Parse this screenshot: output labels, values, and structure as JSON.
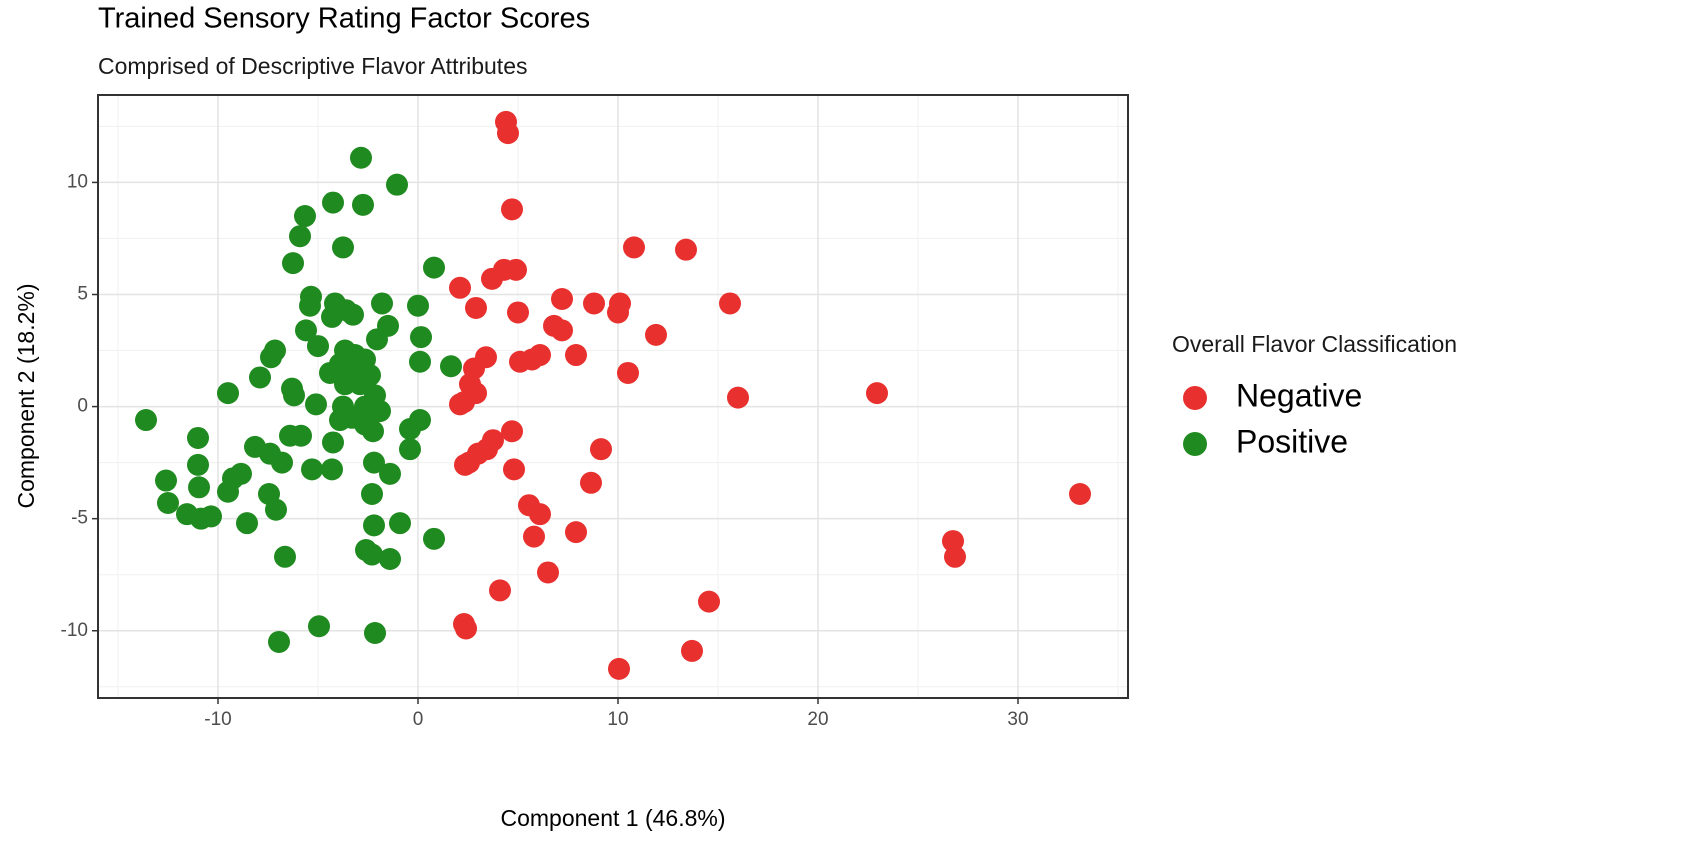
{
  "chart_data": {
    "type": "scatter",
    "title": "Trained Sensory Rating Factor Scores",
    "subtitle": "Comprised of Descriptive Flavor Attributes",
    "x_label": "Component 1 (46.8%)",
    "y_label": "Component 2 (18.2%)",
    "legend_title": "Overall Flavor Classification",
    "legend_position": "right",
    "grid": true,
    "xlim": [
      -16,
      35.5
    ],
    "ylim": [
      -13,
      13.9
    ],
    "xticks": [
      -10,
      0,
      10,
      20,
      30
    ],
    "yticks": [
      -10,
      -5,
      0,
      5,
      10
    ],
    "xminor_ticks": [
      -15,
      -5,
      5,
      15,
      25,
      35
    ],
    "yminor_ticks": [
      -12.5,
      -7.5,
      -2.5,
      2.5,
      7.5,
      12.5
    ],
    "series": [
      {
        "name": "Negative",
        "color": "#e8312f",
        "x": [
          4.4,
          4.5,
          4.7,
          10.8,
          13.4,
          2.1,
          2.9,
          3.7,
          4.3,
          4.9,
          5.0,
          7.2,
          8.8,
          10.1,
          10.0,
          15.6,
          6.8,
          7.2,
          11.9,
          3.4,
          2.8,
          5.1,
          5.7,
          6.1,
          7.9,
          10.5,
          2.6,
          2.9,
          2.3,
          2.1,
          16.0,
          22.95,
          4.7,
          3.75,
          9.15,
          3.45,
          3.0,
          2.55,
          2.35,
          4.8,
          8.65,
          33.1,
          5.55,
          6.1,
          5.8,
          7.9,
          26.75,
          26.85,
          6.5,
          4.1,
          14.55,
          2.3,
          2.4,
          10.05,
          13.7
        ],
        "y": [
          12.7,
          12.2,
          8.8,
          7.1,
          7.0,
          5.3,
          4.4,
          5.7,
          6.1,
          6.1,
          4.2,
          4.8,
          4.6,
          4.6,
          4.2,
          4.6,
          3.6,
          3.4,
          3.2,
          2.2,
          1.7,
          2.0,
          2.1,
          2.3,
          2.3,
          1.5,
          1.0,
          0.6,
          0.2,
          0.1,
          0.4,
          0.6,
          -1.1,
          -1.5,
          -1.9,
          -1.9,
          -2.1,
          -2.5,
          -2.6,
          -2.8,
          -3.4,
          -3.9,
          -4.4,
          -4.8,
          -5.8,
          -5.6,
          -6.0,
          -6.7,
          -7.4,
          -8.2,
          -8.7,
          -9.7,
          -9.9,
          -11.7,
          -10.9
        ]
      },
      {
        "name": "Positive",
        "color": "#1f8a1f",
        "x": [
          -2.85,
          -1.05,
          -4.25,
          -2.75,
          -5.65,
          -5.9,
          -3.75,
          -6.25,
          0.8,
          -5.35,
          -5.4,
          -4.15,
          -3.6,
          -4.3,
          -3.25,
          -1.8,
          0,
          -1.5,
          -5.6,
          -2.05,
          0.15,
          -5.0,
          -7.15,
          -7.35,
          0.1,
          1.65,
          -3.65,
          -3.15,
          -2.65,
          -3.9,
          -3.4,
          -4.4,
          -2.4,
          -7.9,
          -2.9,
          -3.65,
          -9.5,
          -6.3,
          -6.2,
          -2.15,
          -13.6,
          -5.1,
          -3.75,
          -2.65,
          -1.9,
          -3.3,
          -3.9,
          -2.65,
          0.1,
          -0.4,
          -2.25,
          -11.0,
          -6.4,
          -5.85,
          -4.25,
          -0.4,
          -8.15,
          -7.4,
          -6.8,
          -11.0,
          -2.2,
          -5.3,
          -4.3,
          -8.85,
          -9.25,
          -12.6,
          -1.4,
          -10.95,
          -9.5,
          -7.45,
          -2.3,
          -12.5,
          -7.1,
          -11.55,
          -10.85,
          -10.35,
          -8.55,
          -2.2,
          -0.9,
          0.8,
          -2.6,
          -2.3,
          -1.4,
          -6.65,
          -4.95,
          -2.15,
          -6.95
        ],
        "y": [
          11.1,
          9.9,
          9.1,
          9.0,
          8.5,
          7.6,
          7.1,
          6.4,
          6.2,
          4.9,
          4.5,
          4.6,
          4.3,
          4.0,
          4.1,
          4.6,
          4.5,
          3.6,
          3.4,
          3.0,
          3.1,
          2.7,
          2.5,
          2.2,
          2.0,
          1.8,
          2.5,
          2.3,
          2.1,
          1.9,
          1.6,
          1.5,
          1.4,
          1.3,
          1.0,
          1.0,
          0.6,
          0.8,
          0.5,
          0.5,
          -0.6,
          0.1,
          0,
          0,
          -0.2,
          -0.5,
          -0.6,
          -0.8,
          -0.6,
          -1.0,
          -1.1,
          -1.4,
          -1.3,
          -1.3,
          -1.6,
          -1.9,
          -1.8,
          -2.1,
          -2.5,
          -2.6,
          -2.5,
          -2.8,
          -2.8,
          -3.0,
          -3.2,
          -3.3,
          -3.0,
          -3.6,
          -3.8,
          -3.9,
          -3.9,
          -4.3,
          -4.6,
          -4.8,
          -5.0,
          -4.9,
          -5.2,
          -5.3,
          -5.2,
          -5.9,
          -6.4,
          -6.6,
          -6.8,
          -6.7,
          -9.8,
          -10.1,
          -10.5
        ]
      }
    ]
  }
}
